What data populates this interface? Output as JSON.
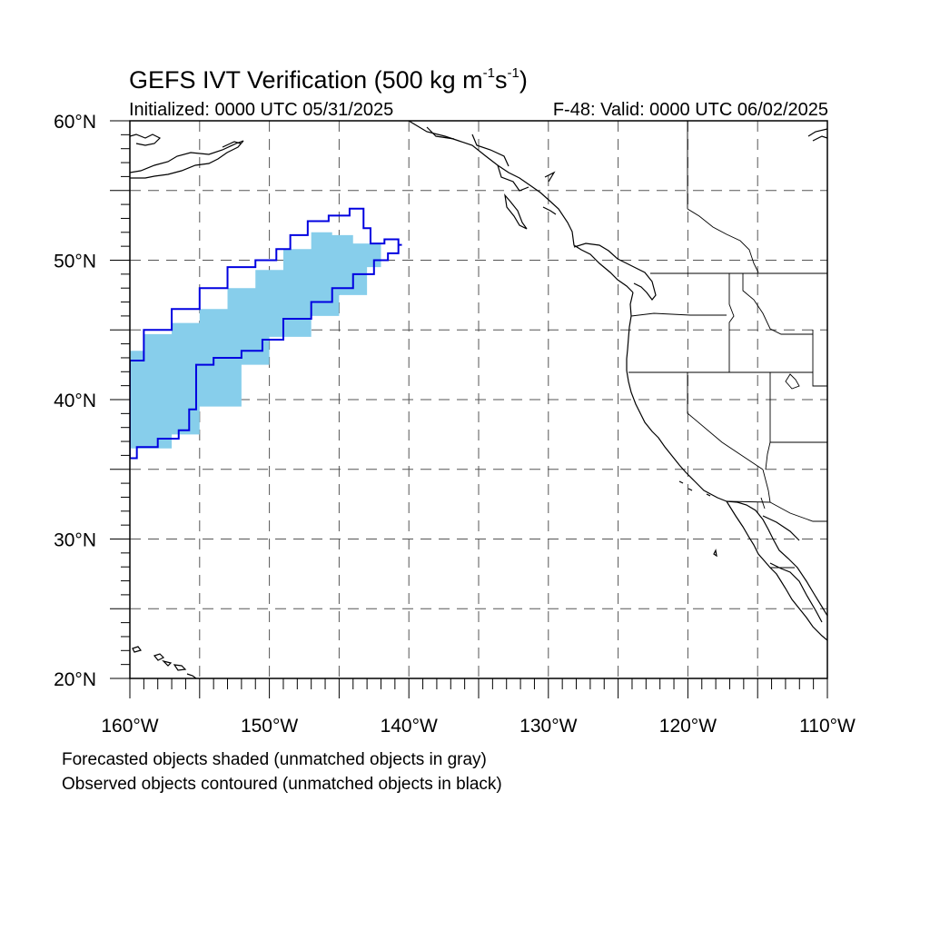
{
  "title": {
    "main": "GEFS IVT Verification (500 kg m",
    "sup1": "-1",
    "mid": "s",
    "sup2": "-1",
    "end": ")"
  },
  "initialized": "Initialized: 0000 UTC 05/31/2025",
  "valid": "F-48: Valid: 0000 UTC 06/02/2025",
  "notes": [
    "Forecasted objects shaded (unmatched objects in gray)",
    "Observed objects contoured (unmatched objects in black)"
  ],
  "axes": {
    "lat_labels": [
      "20°N",
      "30°N",
      "40°N",
      "50°N",
      "60°N"
    ],
    "lon_labels": [
      "160°W",
      "150°W",
      "140°W",
      "130°W",
      "120°W",
      "110°W"
    ],
    "lat_range": [
      20,
      60
    ],
    "lon_range": [
      -160,
      -110
    ],
    "grid": "dashed every 5 degrees"
  },
  "colors": {
    "forecast_fill": "#87ceeb",
    "observed_contour": "#0000e0",
    "coastline": "#000000",
    "grid": "#555555"
  },
  "objects": {
    "forecast": {
      "type": "shaded",
      "points": [
        [
          -160,
          36.5
        ],
        [
          -157,
          37.5
        ],
        [
          -155,
          39.5
        ],
        [
          -152,
          42.5
        ],
        [
          -150,
          44.5
        ],
        [
          -147,
          46
        ],
        [
          -145,
          47.5
        ],
        [
          -143,
          49.5
        ],
        [
          -142,
          50.5
        ],
        [
          -142,
          51.2
        ],
        [
          -144,
          51.8
        ],
        [
          -145.5,
          52
        ],
        [
          -147,
          50.8
        ],
        [
          -149,
          49.3
        ],
        [
          -151,
          48
        ],
        [
          -153,
          46.5
        ],
        [
          -155,
          45.5
        ],
        [
          -157,
          44.7
        ],
        [
          -159,
          43.5
        ],
        [
          -160,
          42
        ]
      ]
    },
    "observed": {
      "type": "contour",
      "points": [
        [
          -160,
          35.8
        ],
        [
          -159,
          36.6
        ],
        [
          -157,
          37.2
        ],
        [
          -156,
          37.8
        ],
        [
          -155.5,
          39.3
        ],
        [
          -155,
          42.5
        ],
        [
          -153,
          43
        ],
        [
          -151,
          43.5
        ],
        [
          -150,
          44.3
        ],
        [
          -148,
          45.8
        ],
        [
          -146,
          47
        ],
        [
          -145,
          48
        ],
        [
          -143,
          49
        ],
        [
          -142,
          50
        ],
        [
          -141,
          50.5
        ],
        [
          -140.5,
          51.1
        ],
        [
          -141,
          51.5
        ],
        [
          -142.5,
          51.2
        ],
        [
          -143,
          52.3
        ],
        [
          -143.5,
          53.7
        ],
        [
          -145,
          53.2
        ],
        [
          -146.5,
          52.8
        ],
        [
          -148,
          51.8
        ],
        [
          -149,
          50.8
        ],
        [
          -150,
          50
        ],
        [
          -152,
          49.5
        ],
        [
          -154,
          48
        ],
        [
          -156,
          46.5
        ],
        [
          -158,
          45
        ],
        [
          -160,
          42.8
        ]
      ]
    }
  }
}
